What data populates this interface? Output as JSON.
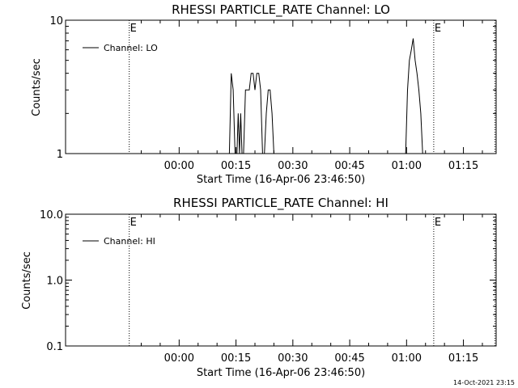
{
  "chart_data": [
    {
      "type": "line",
      "title": "RHESSI PARTICLE_RATE Channel: LO",
      "xlabel": "Start Time (16-Apr-06 23:46:50)",
      "ylabel": "Counts/sec",
      "yscale": "log",
      "ylim": [
        1,
        10
      ],
      "ytick_labels": [
        "1",
        "10"
      ],
      "xlim_minutes_from_start": [
        -16.8,
        96.8
      ],
      "xtick_labels": [
        "00:00",
        "00:15",
        "00:30",
        "00:45",
        "01:00",
        "01:15"
      ],
      "legend": "Channel: LO",
      "legend_position": "top-left",
      "markers": [
        {
          "label": "E",
          "time": "23:46:50"
        },
        {
          "label": "E",
          "time": "01:07:10"
        },
        {
          "label": "",
          "time": "01:23:20"
        }
      ],
      "series": [
        {
          "name": "Channel: LO",
          "points": [
            [
              "00:13:15",
              1
            ],
            [
              "00:13:45",
              4
            ],
            [
              "00:14:15",
              3
            ],
            [
              "00:14:45",
              1
            ],
            [
              "00:15:15",
              1
            ],
            [
              "00:15:35",
              2
            ],
            [
              "00:15:55",
              1
            ],
            [
              "00:16:15",
              2
            ],
            [
              "00:16:35",
              1
            ],
            [
              "00:17:00",
              1
            ],
            [
              "00:17:30",
              3
            ],
            [
              "00:18:30",
              3
            ],
            [
              "00:19:00",
              4
            ],
            [
              "00:19:30",
              4
            ],
            [
              "00:20:00",
              3
            ],
            [
              "00:20:30",
              4
            ],
            [
              "00:21:00",
              4
            ],
            [
              "00:21:30",
              3
            ],
            [
              "00:22:00",
              1
            ],
            [
              "00:22:30",
              1
            ],
            [
              "00:23:00",
              2
            ],
            [
              "00:23:30",
              3
            ],
            [
              "00:24:00",
              3
            ],
            [
              "00:24:30",
              2
            ],
            [
              "00:25:00",
              1
            ],
            [
              "00:59:45",
              1
            ],
            [
              "01:00:15",
              3
            ],
            [
              "01:00:45",
              5
            ],
            [
              "01:01:15",
              6
            ],
            [
              "01:01:45",
              7.3
            ],
            [
              "01:02:15",
              5
            ],
            [
              "01:02:45",
              4
            ],
            [
              "01:03:15",
              3
            ],
            [
              "01:03:45",
              2
            ],
            [
              "01:04:15",
              1
            ]
          ]
        }
      ]
    },
    {
      "type": "line",
      "title": "RHESSI PARTICLE_RATE Channel: HI",
      "xlabel": "Start Time (16-Apr-06 23:46:50)",
      "ylabel": "Counts/sec",
      "yscale": "log",
      "ylim": [
        0.1,
        10
      ],
      "ytick_labels": [
        "0.1",
        "1.0",
        "10.0"
      ],
      "xlim_minutes_from_start": [
        -16.8,
        96.8
      ],
      "xtick_labels": [
        "00:00",
        "00:15",
        "00:30",
        "00:45",
        "01:00",
        "01:15"
      ],
      "legend": "Channel: HI",
      "legend_position": "top-left",
      "markers": [
        {
          "label": "E",
          "time": "23:46:50"
        },
        {
          "label": "E",
          "time": "01:07:10"
        },
        {
          "label": "",
          "time": "01:23:20"
        }
      ],
      "series": [
        {
          "name": "Channel: HI",
          "points": []
        }
      ]
    }
  ],
  "footer": {
    "timestamp": "14-Oct-2021 23:15"
  },
  "colors": {
    "background": "#ffffff",
    "foreground": "#000000"
  }
}
